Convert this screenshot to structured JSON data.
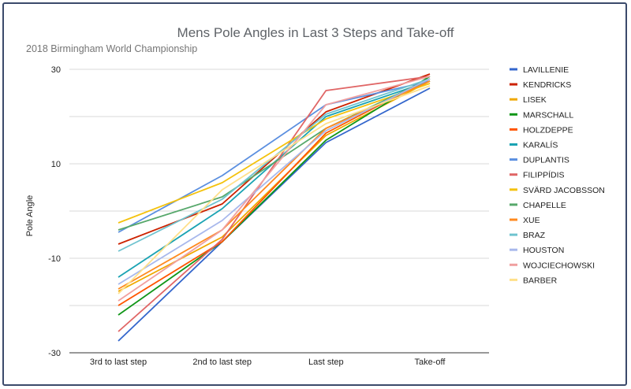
{
  "chart_data": {
    "type": "line",
    "title": "Mens Pole Angles in Last 3 Steps and Take-off",
    "subtitle": "2018 Birmingham World Championship",
    "xlabel": "",
    "ylabel": "Pole Angle",
    "ylim": [
      -30,
      30
    ],
    "y_ticks": [
      "30",
      "10",
      "-10",
      "-30"
    ],
    "grid": true,
    "legend_position": "right",
    "categories": [
      "3rd to last step",
      "2nd to last step",
      "Last step",
      "Take-off"
    ],
    "series": [
      {
        "name": "LAVILLENIE",
        "color": "#3366cc",
        "values": [
          -27.5,
          -6.5,
          14.5,
          26
        ]
      },
      {
        "name": "KENDRICKS",
        "color": "#cc2200",
        "values": [
          -7,
          1.5,
          21,
          29
        ]
      },
      {
        "name": "LISEK",
        "color": "#f0a800",
        "values": [
          -17,
          -5.5,
          16,
          27.5
        ]
      },
      {
        "name": "MARSCHALL",
        "color": "#109618",
        "values": [
          -22,
          -6.5,
          15,
          28.5
        ]
      },
      {
        "name": "HOLZDEPPE",
        "color": "#ff5500",
        "values": [
          -20,
          -6.5,
          16.5,
          28
        ]
      },
      {
        "name": "KARALÍS",
        "color": "#1aa3b3",
        "values": [
          -14,
          0.5,
          20,
          27.5
        ]
      },
      {
        "name": "DUPLANTIS",
        "color": "#5b8fe0",
        "values": [
          -4.5,
          7.5,
          22.5,
          27.5
        ]
      },
      {
        "name": "FILIPPÍDIS",
        "color": "#e06666",
        "values": [
          -25.5,
          -6,
          25.5,
          28.5
        ]
      },
      {
        "name": "SVÄRD JACOBSSON",
        "color": "#f4c20d",
        "values": [
          -2.5,
          6,
          19.5,
          27
        ]
      },
      {
        "name": "CHAPELLE",
        "color": "#57a86b",
        "values": [
          -4,
          3,
          17.5,
          28
        ]
      },
      {
        "name": "XUE",
        "color": "#ff8a1f",
        "values": [
          -16.5,
          -4,
          17.5,
          27.5
        ]
      },
      {
        "name": "BRAZ",
        "color": "#6fc3cf",
        "values": [
          -8.5,
          2.5,
          20.5,
          28
        ]
      },
      {
        "name": "HOUSTON",
        "color": "#a8b8ec",
        "values": [
          -15.5,
          -2,
          17,
          28
        ]
      },
      {
        "name": "WOJCIECHOWSKI",
        "color": "#f0a0a0",
        "values": [
          -19,
          -4,
          22.5,
          28.5
        ]
      },
      {
        "name": "BARBER",
        "color": "#ffe08a",
        "values": [
          -17.5,
          4.5,
          18.5,
          26.5
        ]
      }
    ]
  }
}
